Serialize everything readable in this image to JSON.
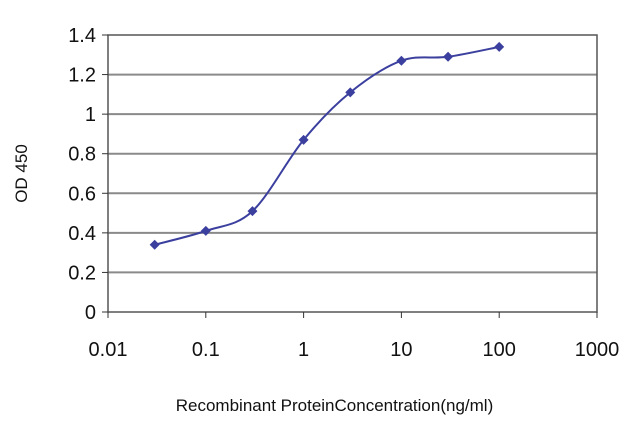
{
  "chart_data": {
    "type": "line",
    "title": "",
    "xlabel": "Recombinant ProteinConcentration(ng/ml)",
    "ylabel": "OD 450",
    "x_scale": "log",
    "xlim": [
      0.01,
      1000
    ],
    "ylim": [
      0,
      1.4
    ],
    "x_ticks": [
      0.01,
      0.1,
      1,
      10,
      100,
      1000
    ],
    "x_tick_labels": [
      "0.01",
      "0.1",
      "1",
      "10",
      "100",
      "1000"
    ],
    "y_ticks": [
      0,
      0.2,
      0.4,
      0.6,
      0.8,
      1.0,
      1.2,
      1.4
    ],
    "y_tick_labels": [
      "0",
      "0.2",
      "0.4",
      "0.6",
      "0.8",
      "1",
      "1.2",
      "1.4"
    ],
    "grid": "horizontal",
    "legend": "none",
    "series": [
      {
        "color": "#3b3f9e",
        "marker": "diamond",
        "points": [
          {
            "x": 0.03,
            "y": 0.34
          },
          {
            "x": 0.1,
            "y": 0.41
          },
          {
            "x": 0.3,
            "y": 0.51
          },
          {
            "x": 1,
            "y": 0.87
          },
          {
            "x": 3,
            "y": 1.11
          },
          {
            "x": 10,
            "y": 1.27
          },
          {
            "x": 30,
            "y": 1.29
          },
          {
            "x": 100,
            "y": 1.34
          }
        ]
      }
    ],
    "colors": {
      "plot_border": "#555555",
      "gridline": "#8a8a8a",
      "axis": "#333333"
    }
  }
}
